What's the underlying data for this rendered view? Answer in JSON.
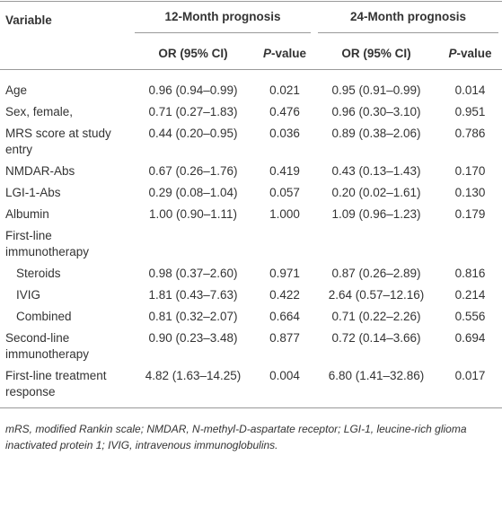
{
  "table": {
    "header": {
      "variable": "Variable",
      "groups": [
        "12-Month prognosis",
        "24-Month prognosis"
      ],
      "subheaders": [
        "OR (95% CI)",
        "P-value",
        "OR (95% CI)",
        "P-value"
      ]
    },
    "rows": [
      {
        "label": "Age",
        "cells": [
          "0.96 (0.94–0.99)",
          "0.021",
          "0.95 (0.91–0.99)",
          "0.014"
        ]
      },
      {
        "label": "Sex, female,",
        "cells": [
          "0.71 (0.27–1.83)",
          "0.476",
          "0.96 (0.30–3.10)",
          "0.951"
        ]
      },
      {
        "label": "MRS score at study entry",
        "cells": [
          "0.44 (0.20–0.95)",
          "0.036",
          "0.89 (0.38–2.06)",
          "0.786"
        ]
      },
      {
        "label": "NMDAR-Abs",
        "cells": [
          "0.67 (0.26–1.76)",
          "0.419",
          "0.43 (0.13–1.43)",
          "0.170"
        ]
      },
      {
        "label": "LGI-1-Abs",
        "cells": [
          "0.29 (0.08–1.04)",
          "0.057",
          "0.20 (0.02–1.61)",
          "0.130"
        ]
      },
      {
        "label": "Albumin",
        "cells": [
          "1.00 (0.90–1.11)",
          "1.000",
          "1.09 (0.96–1.23)",
          "0.179"
        ]
      },
      {
        "label": "First-line immunotherapy",
        "children": [
          {
            "label": "Steroids",
            "cells": [
              "0.98 (0.37–2.60)",
              "0.971",
              "0.87 (0.26–2.89)",
              "0.816"
            ]
          },
          {
            "label": "IVIG",
            "cells": [
              "1.81 (0.43–7.63)",
              "0.422",
              "2.64 (0.57–12.16)",
              "0.214"
            ]
          },
          {
            "label": "Combined",
            "cells": [
              "0.81 (0.32–2.07)",
              "0.664",
              "0.71 (0.22–2.26)",
              "0.556"
            ]
          }
        ]
      },
      {
        "label": "Second-line immunotherapy",
        "cells": [
          "0.90 (0.23–3.48)",
          "0.877",
          "0.72 (0.14–3.66)",
          "0.694"
        ]
      },
      {
        "label": "First-line treatment response",
        "cells": [
          "4.82 (1.63–14.25)",
          "0.004",
          "6.80 (1.41–32.86)",
          "0.017"
        ]
      }
    ]
  },
  "footnote": "mRS, modified Rankin scale; NMDAR, N-methyl-D-aspartate receptor; LGI-1, leucine-rich glioma inactivated protein 1; IVIG, intravenous immunoglobulins."
}
